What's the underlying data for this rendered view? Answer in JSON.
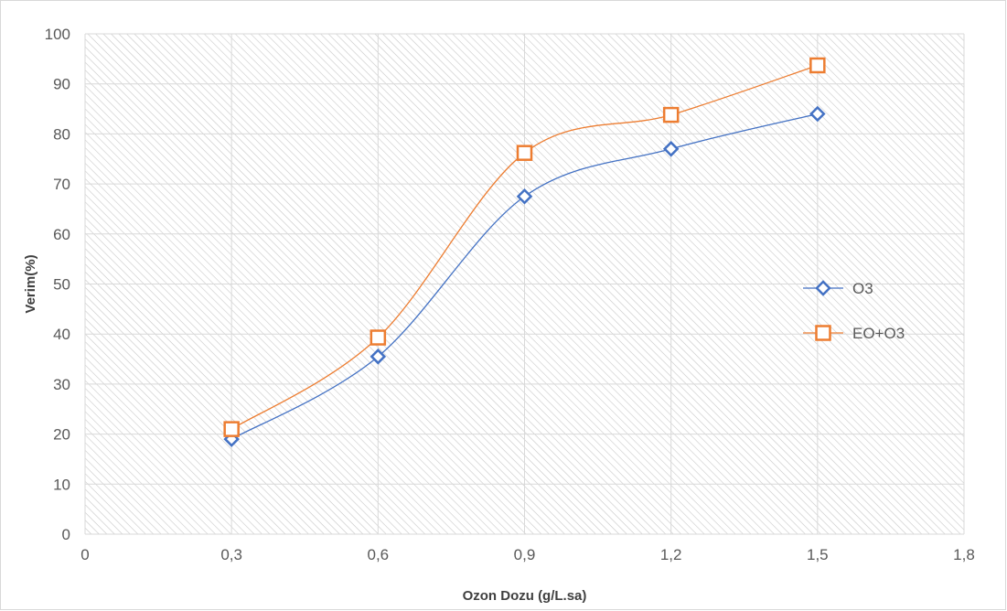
{
  "chart_data": {
    "type": "line",
    "title": "",
    "xlabel": "Ozon Dozu (g/L.sa)",
    "ylabel": "Verim(%)",
    "xlim": [
      0,
      1.8
    ],
    "ylim": [
      0,
      100
    ],
    "x_ticks": [
      "0",
      "0,3",
      "0,6",
      "0,9",
      "1,2",
      "1,5",
      "1,8"
    ],
    "y_ticks": [
      "0",
      "10",
      "20",
      "30",
      "40",
      "50",
      "60",
      "70",
      "80",
      "90",
      "100"
    ],
    "x": [
      0.3,
      0.6,
      0.9,
      1.2,
      1.5
    ],
    "series": [
      {
        "name": "O3",
        "values": [
          19,
          35.5,
          67.5,
          77,
          84
        ],
        "color": "#4472c4",
        "marker": "diamond"
      },
      {
        "name": "EO+O3",
        "values": [
          21,
          39.3,
          76.2,
          83.8,
          93.7
        ],
        "color": "#ed7d31",
        "marker": "square"
      }
    ],
    "grid": true,
    "smooth": true,
    "legend_position": "right"
  }
}
